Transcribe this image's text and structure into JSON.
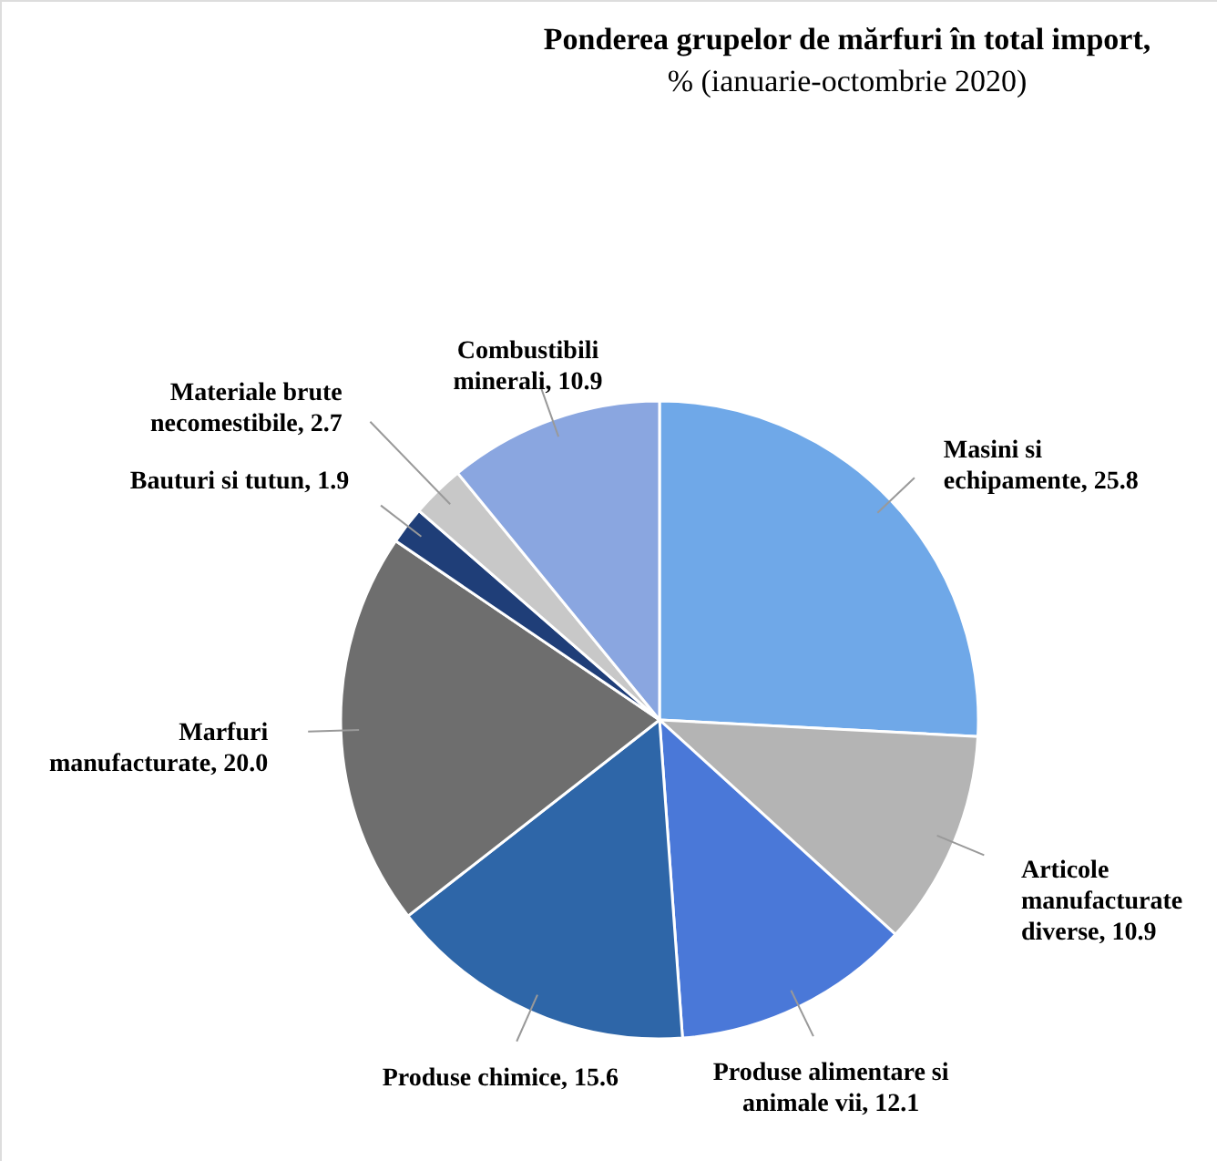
{
  "chart_data": {
    "type": "pie",
    "title": "Ponderea grupelor de mărfuri în total import,",
    "subtitle": "% (ianuarie-octombrie 2020)",
    "categories": [
      "Masini si echipamente ",
      "Articole manufacturate diverse",
      "Produse alimentare si animale vii",
      "Produse chimice ",
      "Marfuri manufacturate",
      "Bauturi si tutun",
      "Materiale brute necomestibile",
      "Combustibili minerali"
    ],
    "values": [
      25.8,
      10.9,
      12.1,
      15.6,
      20.0,
      1.9,
      2.7,
      10.9
    ],
    "value_labels": [
      "25.8",
      "10.9",
      "12.1",
      "15.6",
      "20.0",
      "1.9",
      "2.7",
      "10.9"
    ],
    "colors": [
      "#6fa8e8",
      "#b4b4b4",
      "#4a78d8",
      "#2e66a8",
      "#6e6e6e",
      "#1f3e78",
      "#c8c8c8",
      "#8aa6e0"
    ]
  }
}
